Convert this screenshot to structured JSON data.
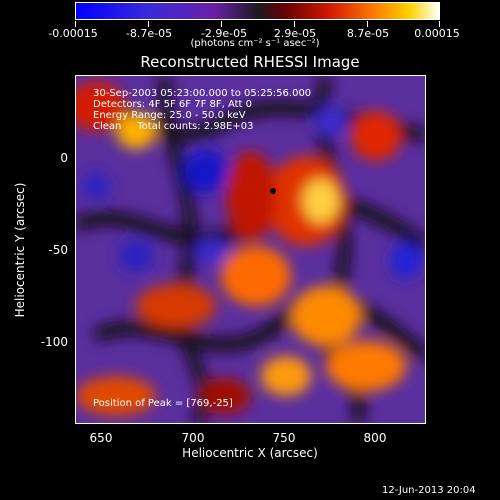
{
  "colorbar": {
    "tick_labels": [
      "-0.00015",
      "-8.7e-05",
      "-2.9e-05",
      "2.9e-05",
      "8.7e-05",
      "0.00015"
    ],
    "units": "(photons cm⁻² s⁻¹ asec⁻²)"
  },
  "title": "Reconstructed RHESSI Image",
  "annotations": {
    "line1": "30-Sep-2003 05:23:00.000 to 05:25:56.000",
    "line2": "Detectors: 4F 5F 6F 7F 8F, Att 0",
    "line3": "Energy Range: 25.0 - 50.0 keV",
    "line4": "Clean     Total counts: 2.98E+03",
    "peak": "Position of Peak = [769,-25]"
  },
  "axes": {
    "xlabel": "Heliocentric X (arcsec)",
    "ylabel": "Heliocentric Y (arcsec)",
    "xticks": [
      "650",
      "700",
      "750",
      "800"
    ],
    "yticks": [
      "0",
      "-50",
      "-100"
    ]
  },
  "timestamp": "12-Jun-2013 20:04"
}
